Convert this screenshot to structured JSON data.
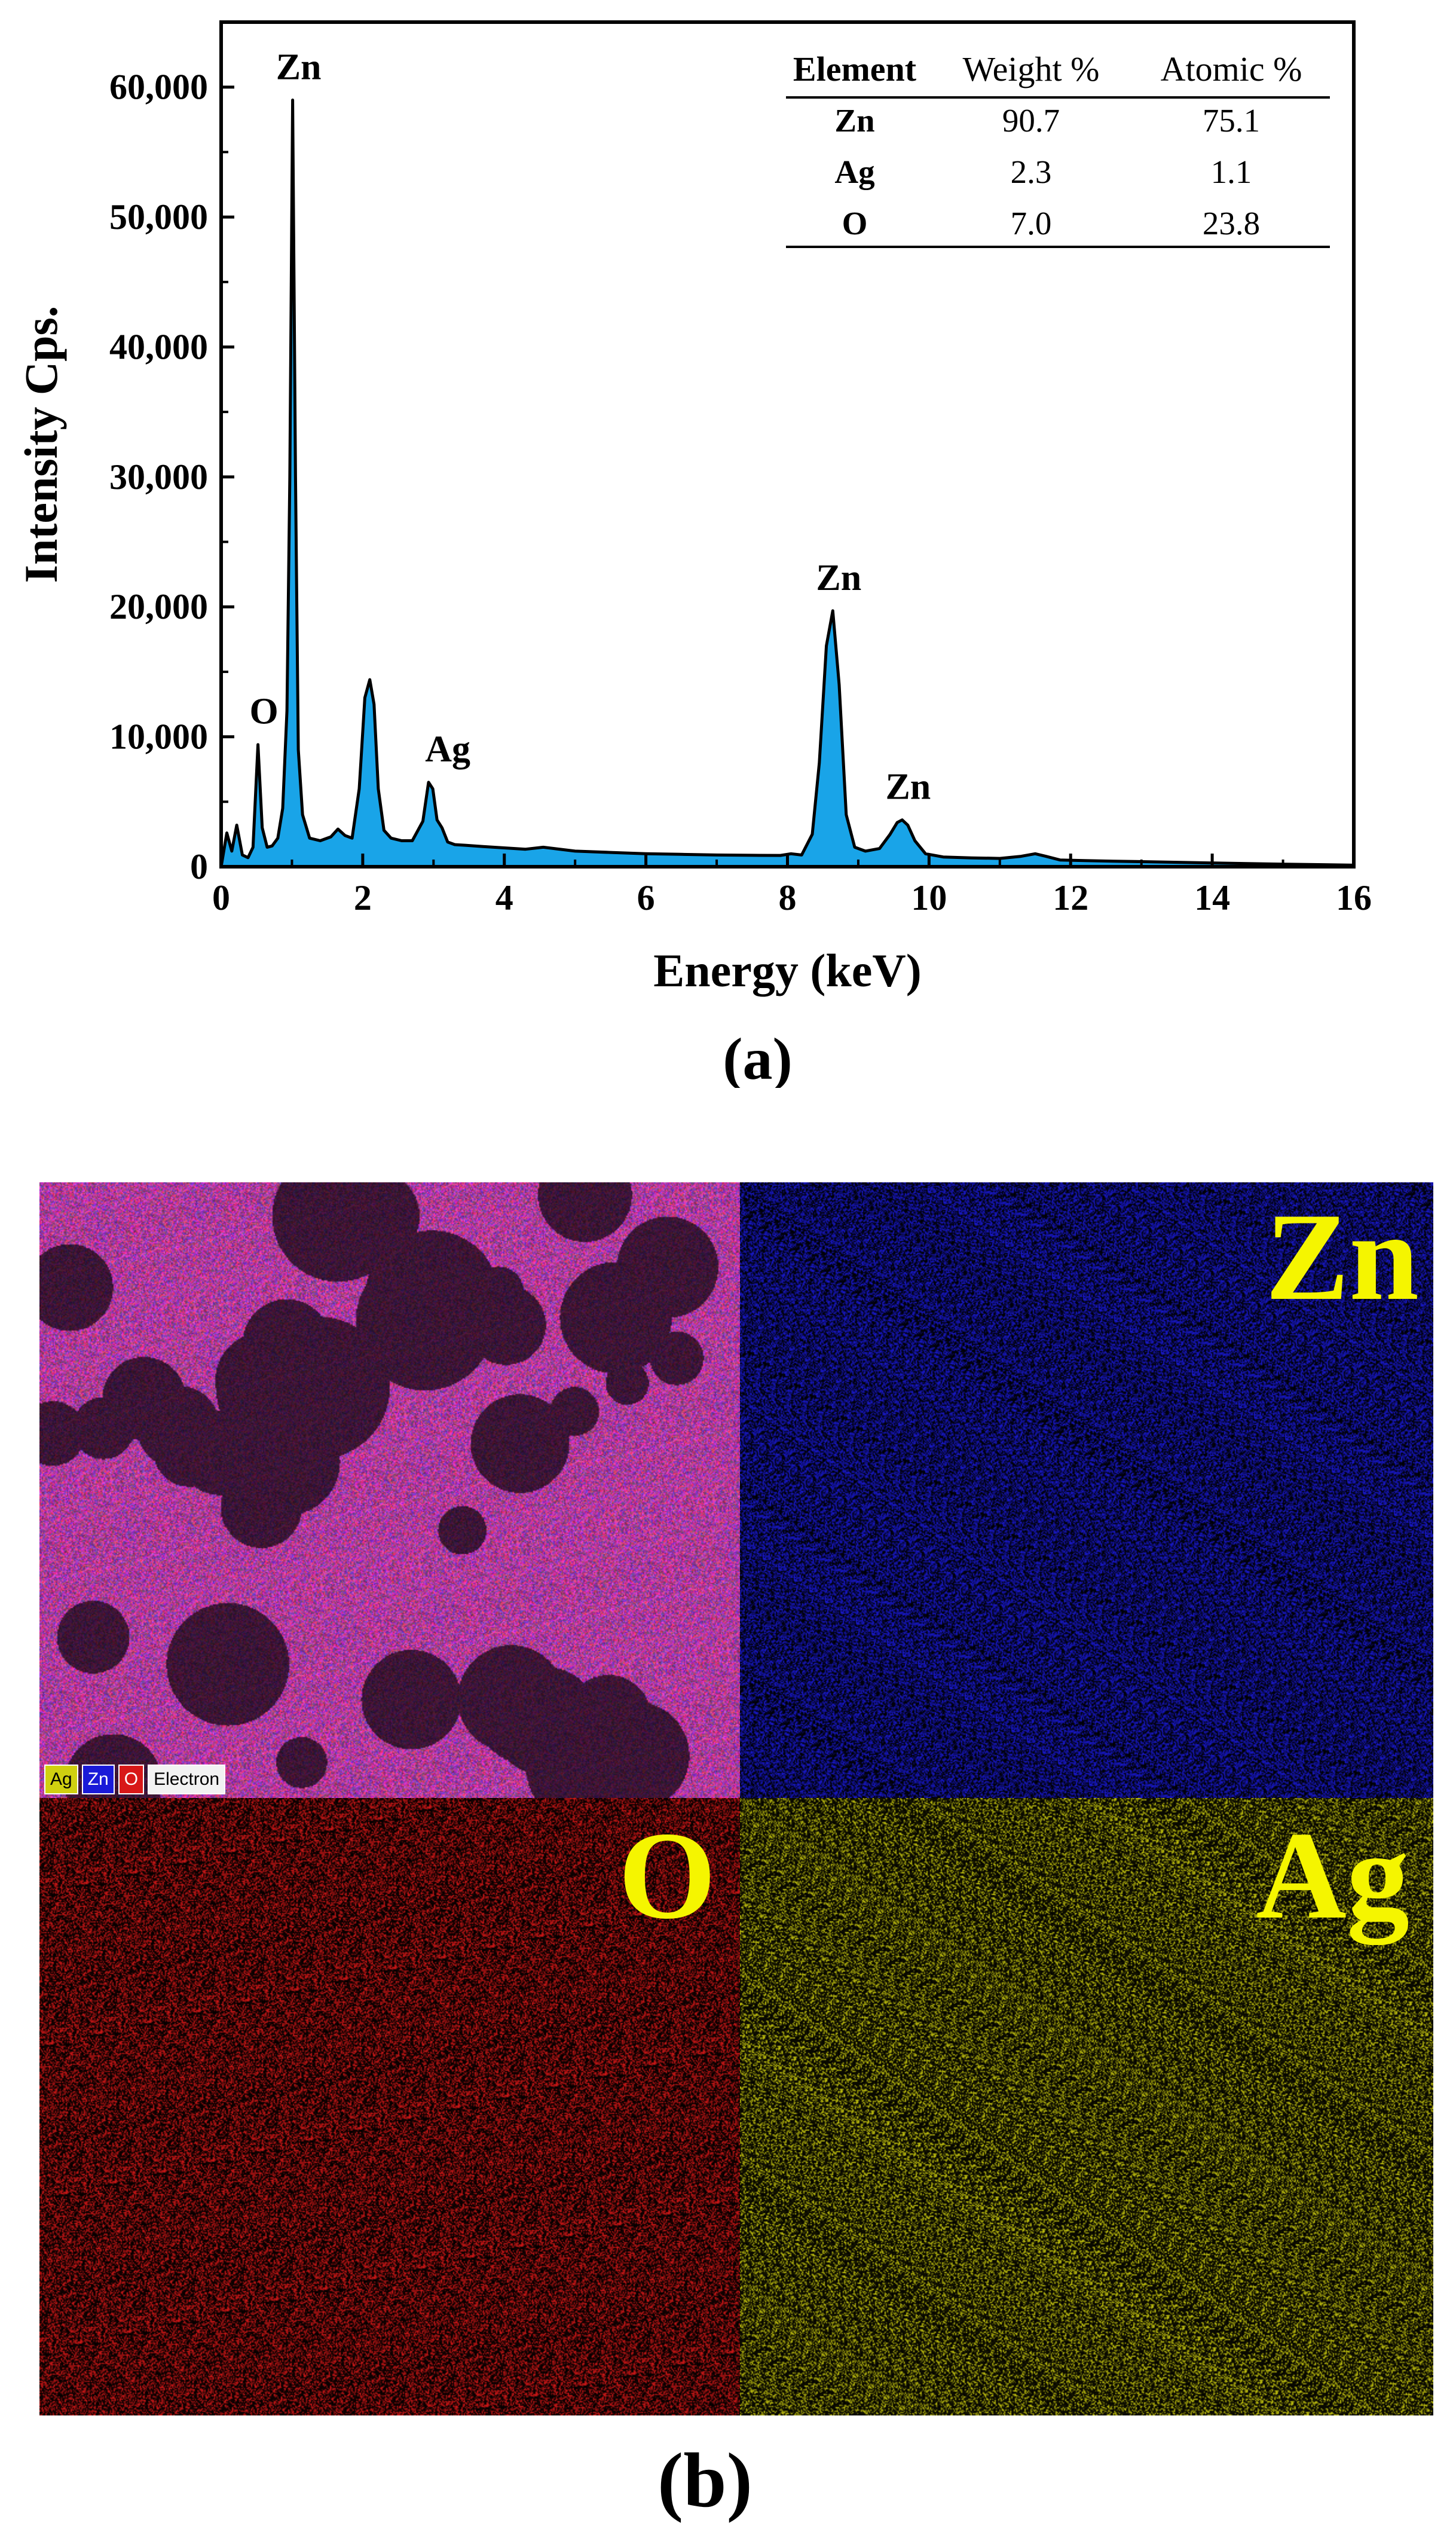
{
  "chart_data": {
    "type": "area",
    "title": "",
    "xlabel": "Energy (keV)",
    "ylabel": "Intensity Cps.",
    "xlim": [
      0,
      16
    ],
    "ylim": [
      0,
      65000
    ],
    "xticks": [
      "0",
      "2",
      "4",
      "6",
      "8",
      "10",
      "12",
      "14",
      "16"
    ],
    "yticks": [
      "0",
      "10,000",
      "20,000",
      "30,000",
      "40,000",
      "50,000",
      "60,000"
    ],
    "grid": false,
    "fill_color": "#19a4e8",
    "series": [
      {
        "x": [
          0.0,
          0.08,
          0.15,
          0.22,
          0.3,
          0.38,
          0.45,
          0.52,
          0.58,
          0.65,
          0.72,
          0.8,
          0.87,
          0.93,
          0.97,
          1.01,
          1.05,
          1.09,
          1.15,
          1.25,
          1.4,
          1.55,
          1.65,
          1.75,
          1.85,
          1.95,
          2.03,
          2.1,
          2.16,
          2.22,
          2.3,
          2.4,
          2.55,
          2.7,
          2.85,
          2.93,
          2.99,
          3.05,
          3.12,
          3.2,
          3.3,
          3.45,
          3.7,
          4.0,
          4.3,
          4.55,
          5.0,
          5.5,
          6.0,
          6.5,
          7.0,
          7.5,
          7.9,
          8.05,
          8.2,
          8.35,
          8.45,
          8.55,
          8.64,
          8.73,
          8.83,
          8.95,
          9.1,
          9.3,
          9.45,
          9.55,
          9.62,
          9.7,
          9.8,
          9.95,
          10.2,
          10.6,
          11.0,
          11.3,
          11.5,
          11.65,
          11.85,
          12.2,
          12.6,
          13.0,
          13.4,
          14.0,
          14.5,
          15.0,
          15.5,
          16.0
        ],
        "y": [
          0,
          2600,
          1200,
          3200,
          900,
          700,
          1500,
          9400,
          3000,
          1500,
          1600,
          2200,
          4500,
          12000,
          30000,
          59000,
          30000,
          9000,
          4000,
          2200,
          2000,
          2300,
          2900,
          2400,
          2200,
          6000,
          13000,
          14400,
          12500,
          6000,
          2800,
          2200,
          2000,
          2000,
          3500,
          6500,
          6000,
          3600,
          3000,
          1900,
          1700,
          1650,
          1550,
          1450,
          1350,
          1500,
          1200,
          1100,
          1000,
          950,
          900,
          880,
          870,
          1000,
          900,
          2500,
          8000,
          17000,
          19700,
          14000,
          4000,
          1500,
          1200,
          1400,
          2500,
          3400,
          3600,
          3200,
          2000,
          1000,
          750,
          680,
          640,
          800,
          1000,
          800,
          520,
          470,
          430,
          390,
          350,
          290,
          240,
          200,
          160,
          120
        ]
      }
    ],
    "peak_labels": [
      {
        "label": "Zn",
        "x": 1.01,
        "y": 59000
      },
      {
        "label": "O",
        "x": 0.52,
        "y": 9400
      },
      {
        "label": "Ag",
        "x": 2.99,
        "y": 6500
      },
      {
        "label": "Zn",
        "x": 8.64,
        "y": 19700
      },
      {
        "label": "Zn",
        "x": 9.62,
        "y": 3600
      }
    ],
    "table": {
      "headers": [
        "Element",
        "Weight %",
        "Atomic %"
      ],
      "rows": [
        [
          "Zn",
          "90.7",
          "75.1"
        ],
        [
          "Ag",
          "2.3",
          "1.1"
        ],
        [
          "O",
          "7.0",
          "23.8"
        ]
      ]
    }
  },
  "caption_a": "(a)",
  "caption_b": "(b)",
  "maps": {
    "zn_label": "Zn",
    "o_label": "O",
    "ag_label": "Ag",
    "legend": {
      "ag": "Ag",
      "zn": "Zn",
      "o": "O",
      "electron": "Electron"
    },
    "colors": {
      "zn": "#1a1ad8",
      "o": "#d81818",
      "ag": "#d0d010"
    }
  }
}
